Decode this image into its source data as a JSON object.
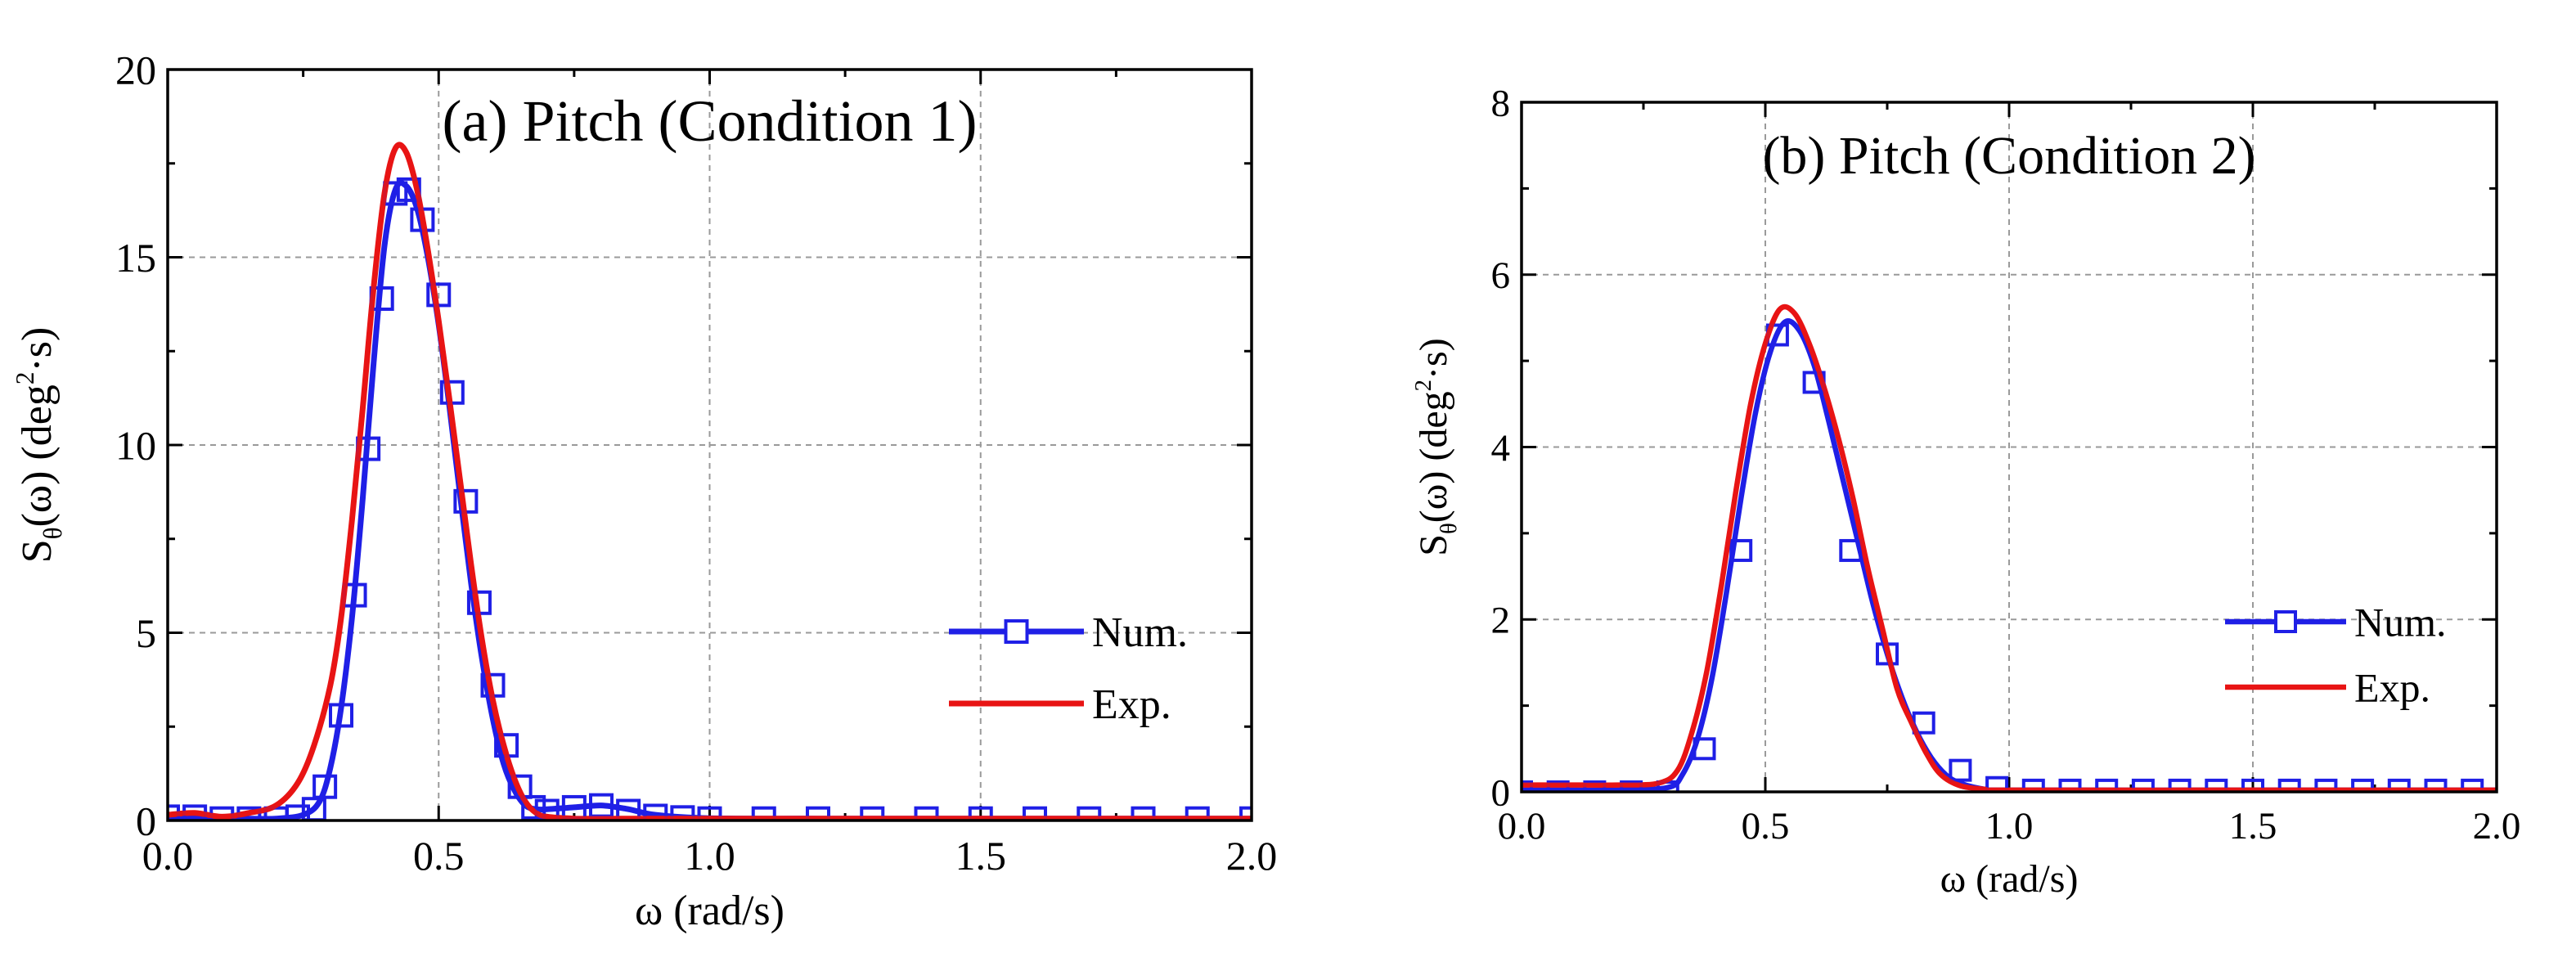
{
  "chart_data": [
    {
      "type": "line",
      "title": "(a) Pitch (Condition 1)",
      "xlabel": "ω (rad/s)",
      "ylabel": {
        "base": "S",
        "sub": "θ",
        "mid": "(ω) (deg",
        "sup": "2",
        "end": "·s)"
      },
      "xlim": [
        0,
        2
      ],
      "ylim": [
        0,
        20
      ],
      "xticks": [
        0.0,
        0.5,
        1.0,
        1.5,
        2.0
      ],
      "xtick_labels": [
        "0.0",
        "0.5",
        "1.0",
        "1.5",
        "2.0"
      ],
      "yticks": [
        0,
        5,
        10,
        15,
        20
      ],
      "ytick_labels": [
        "0",
        "5",
        "10",
        "15",
        "20"
      ],
      "grid": true,
      "legend_position": "middle-right",
      "series": [
        {
          "name": "Num.",
          "color": "#1f1fe6",
          "marker": "open-square",
          "x": [
            0.0,
            0.05,
            0.1,
            0.15,
            0.2,
            0.24,
            0.27,
            0.29,
            0.32,
            0.345,
            0.37,
            0.395,
            0.42,
            0.445,
            0.47,
            0.5,
            0.525,
            0.55,
            0.575,
            0.6,
            0.625,
            0.65,
            0.675,
            0.7,
            0.75,
            0.8,
            0.85,
            0.9,
            0.95,
            1.0,
            1.1,
            1.2,
            1.3,
            1.4,
            1.5,
            1.6,
            1.7,
            1.8,
            1.9,
            2.0
          ],
          "y": [
            0.1,
            0.1,
            0.05,
            0.05,
            0.05,
            0.1,
            0.3,
            0.9,
            2.8,
            6.0,
            9.9,
            13.9,
            16.7,
            16.8,
            16.0,
            14.0,
            11.4,
            8.5,
            5.8,
            3.6,
            2.0,
            0.9,
            0.35,
            0.25,
            0.35,
            0.4,
            0.25,
            0.12,
            0.08,
            0.05,
            0.05,
            0.05,
            0.05,
            0.05,
            0.05,
            0.05,
            0.05,
            0.05,
            0.05,
            0.05
          ],
          "line_x": [
            0.0,
            0.05,
            0.1,
            0.15,
            0.2,
            0.25,
            0.28,
            0.3,
            0.32,
            0.34,
            0.36,
            0.38,
            0.4,
            0.42,
            0.44,
            0.46,
            0.48,
            0.5,
            0.52,
            0.54,
            0.56,
            0.58,
            0.6,
            0.62,
            0.64,
            0.66,
            0.68,
            0.7,
            0.75,
            0.8,
            0.85,
            0.9,
            1.0,
            1.2,
            1.5,
            2.0
          ],
          "line_y": [
            0.1,
            0.1,
            0.05,
            0.05,
            0.05,
            0.15,
            0.5,
            1.4,
            3.0,
            5.4,
            8.6,
            12.2,
            15.3,
            16.8,
            16.9,
            16.3,
            15.0,
            13.2,
            11.0,
            8.6,
            6.3,
            4.3,
            2.7,
            1.5,
            0.8,
            0.4,
            0.3,
            0.3,
            0.35,
            0.4,
            0.3,
            0.15,
            0.06,
            0.05,
            0.05,
            0.05
          ]
        },
        {
          "name": "Exp.",
          "color": "#e81414",
          "marker": "none",
          "x": [
            0.0,
            0.05,
            0.1,
            0.15,
            0.2,
            0.24,
            0.27,
            0.3,
            0.32,
            0.34,
            0.36,
            0.38,
            0.4,
            0.42,
            0.44,
            0.46,
            0.48,
            0.5,
            0.52,
            0.54,
            0.56,
            0.58,
            0.6,
            0.62,
            0.64,
            0.66,
            0.68,
            0.7,
            0.75,
            0.8,
            0.9,
            1.0,
            1.5,
            2.0
          ],
          "y": [
            0.15,
            0.2,
            0.1,
            0.2,
            0.4,
            1.0,
            2.0,
            3.6,
            5.4,
            8.0,
            11.0,
            14.2,
            16.7,
            17.9,
            17.8,
            16.8,
            15.2,
            13.3,
            11.2,
            9.0,
            6.8,
            4.8,
            3.2,
            2.0,
            1.1,
            0.5,
            0.2,
            0.1,
            0.05,
            0.05,
            0.05,
            0.05,
            0.05,
            0.05
          ]
        }
      ]
    },
    {
      "type": "line",
      "title": "(b) Pitch (Condition 2)",
      "xlabel": "ω (rad/s)",
      "ylabel": {
        "base": "S",
        "sub": "θ",
        "mid": "(ω) (deg",
        "sup": "2",
        "end": "·s)"
      },
      "xlim": [
        0,
        2
      ],
      "ylim": [
        0,
        8
      ],
      "xticks": [
        0.0,
        0.5,
        1.0,
        1.5,
        2.0
      ],
      "xtick_labels": [
        "0.0",
        "0.5",
        "1.0",
        "1.5",
        "2.0"
      ],
      "yticks": [
        0,
        2,
        4,
        6,
        8
      ],
      "ytick_labels": [
        "0",
        "2",
        "4",
        "6",
        "8"
      ],
      "grid": true,
      "legend_position": "middle-right",
      "series": [
        {
          "name": "Num.",
          "color": "#1f1fe6",
          "marker": "open-square",
          "x": [
            0.0,
            0.075,
            0.15,
            0.225,
            0.3,
            0.375,
            0.45,
            0.525,
            0.6,
            0.675,
            0.75,
            0.825,
            0.9,
            0.975,
            1.05,
            1.125,
            1.2,
            1.275,
            1.35,
            1.425,
            1.5,
            1.575,
            1.65,
            1.725,
            1.8,
            1.875,
            1.95
          ],
          "y": [
            0.0,
            0.0,
            0.0,
            0.0,
            0.0,
            0.5,
            2.8,
            5.3,
            4.75,
            2.8,
            1.6,
            0.8,
            0.25,
            0.05,
            0.02,
            0.02,
            0.02,
            0.02,
            0.02,
            0.02,
            0.02,
            0.02,
            0.02,
            0.02,
            0.02,
            0.02,
            0.02
          ],
          "line_x": [
            0.0,
            0.1,
            0.2,
            0.3,
            0.33,
            0.36,
            0.39,
            0.42,
            0.45,
            0.48,
            0.51,
            0.54,
            0.57,
            0.6,
            0.63,
            0.66,
            0.69,
            0.72,
            0.75,
            0.78,
            0.81,
            0.84,
            0.87,
            0.9,
            0.95,
            1.0,
            1.5,
            2.0
          ],
          "line_y": [
            0.02,
            0.02,
            0.02,
            0.05,
            0.2,
            0.6,
            1.3,
            2.3,
            3.4,
            4.4,
            5.1,
            5.45,
            5.35,
            4.95,
            4.3,
            3.6,
            2.9,
            2.2,
            1.6,
            1.1,
            0.7,
            0.4,
            0.2,
            0.1,
            0.03,
            0.02,
            0.02,
            0.02
          ]
        },
        {
          "name": "Exp.",
          "color": "#e81414",
          "marker": "none",
          "x": [
            0.0,
            0.1,
            0.2,
            0.28,
            0.32,
            0.35,
            0.38,
            0.41,
            0.44,
            0.47,
            0.5,
            0.53,
            0.56,
            0.59,
            0.62,
            0.65,
            0.68,
            0.71,
            0.74,
            0.77,
            0.8,
            0.83,
            0.86,
            0.9,
            0.95,
            1.0,
            1.5,
            2.0
          ],
          "y": [
            0.08,
            0.08,
            0.08,
            0.1,
            0.25,
            0.7,
            1.4,
            2.4,
            3.5,
            4.5,
            5.2,
            5.6,
            5.55,
            5.2,
            4.7,
            4.1,
            3.4,
            2.6,
            1.9,
            1.2,
            0.8,
            0.45,
            0.2,
            0.07,
            0.03,
            0.02,
            0.02,
            0.02
          ]
        }
      ]
    }
  ]
}
